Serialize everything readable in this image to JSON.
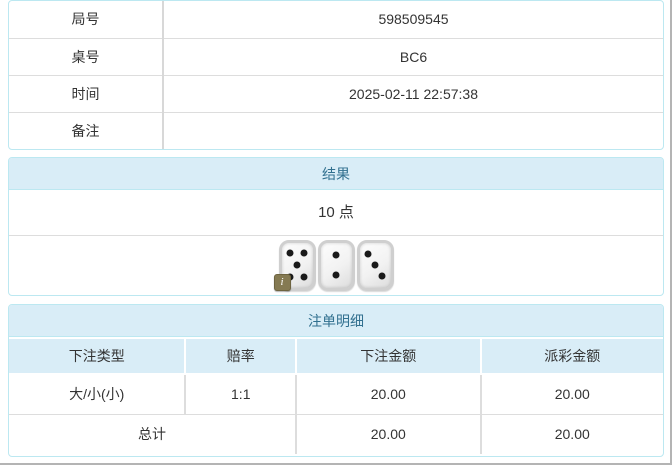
{
  "info_table": {
    "rows": [
      {
        "label": "局号",
        "value": "598509545"
      },
      {
        "label": "桌号",
        "value": "BC6"
      },
      {
        "label": "时间",
        "value": "2025-02-11 22:57:38"
      },
      {
        "label": "备注",
        "value": ""
      }
    ]
  },
  "result_panel": {
    "title": "结果",
    "points": "10 点",
    "dice": [
      5,
      2,
      3
    ],
    "info_badge": "i"
  },
  "bets_panel": {
    "title": "注单明细",
    "columns": [
      "下注类型",
      "赔率",
      "下注金额",
      "派彩金额"
    ],
    "rows": [
      {
        "bet_type": "大/小(小)",
        "odds": "1:1",
        "bet_amount": "20.00",
        "payout_amount": "20.00"
      }
    ],
    "total": {
      "label": "总计",
      "bet_amount": "20.00",
      "payout_amount": "20.00"
    }
  },
  "colors": {
    "panel_border": "#bce8f1",
    "header_bg": "#d9edf7",
    "header_text": "#31708f",
    "divider": "#dddddd",
    "odds_red": "#e03333"
  }
}
